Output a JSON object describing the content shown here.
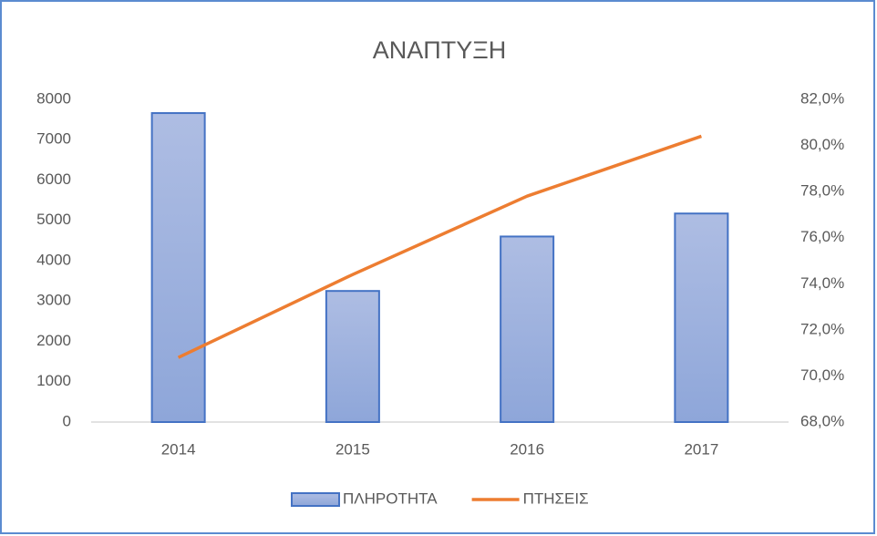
{
  "chart_data": {
    "type": "bar",
    "title": "ΑΝΑΠΤΥΞΗ",
    "categories": [
      "2014",
      "2015",
      "2016",
      "2017"
    ],
    "series": [
      {
        "name": "ΠΛΗΡΟΤΗΤΑ",
        "type": "bar",
        "color": "#4472c4",
        "values": [
          7660,
          3250,
          4600,
          5170
        ]
      },
      {
        "name": "ΠΤΗΣΕΙΣ",
        "type": "line",
        "axis": "y2",
        "color": "#ed7d31",
        "values": [
          70.8,
          74.4,
          77.8,
          80.4
        ]
      }
    ],
    "ylim": [
      0,
      8000
    ],
    "yticks": [
      0,
      1000,
      2000,
      3000,
      4000,
      5000,
      6000,
      7000,
      8000
    ],
    "y2lim": [
      68,
      82
    ],
    "y2ticks": [
      {
        "value": 68,
        "label": "68,0%"
      },
      {
        "value": 70,
        "label": "70,0%"
      },
      {
        "value": 72,
        "label": "72,0%"
      },
      {
        "value": 74,
        "label": "74,0%"
      },
      {
        "value": 76,
        "label": "76,0%"
      },
      {
        "value": 78,
        "label": "78,0%"
      },
      {
        "value": 80,
        "label": "80,0%"
      },
      {
        "value": 82,
        "label": "82,0%"
      }
    ],
    "legend": "bottom"
  }
}
